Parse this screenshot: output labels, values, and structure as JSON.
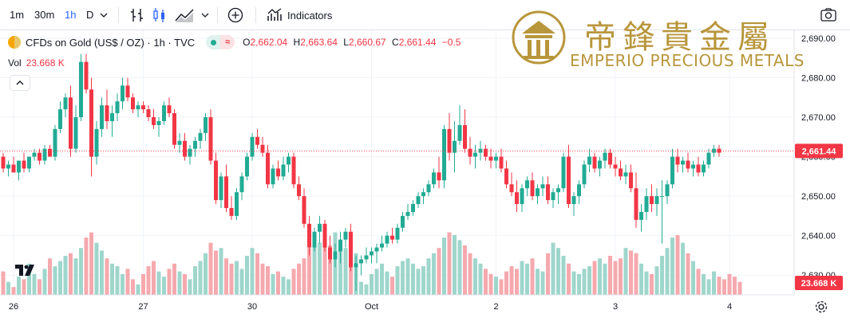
{
  "toolbar": {
    "intervals": [
      "1m",
      "30m",
      "1h",
      "D"
    ],
    "active_interval": "1h",
    "indicators_label": "Indicators"
  },
  "legend": {
    "symbol": "CFDs on Gold (US$ / OZ) · 1h · TVC",
    "o_label": "O",
    "o": "2,662.04",
    "h_label": "H",
    "h": "2,663.64",
    "l_label": "L",
    "l": "2,660.67",
    "c_label": "C",
    "c": "2,661.44",
    "change": "−0.5"
  },
  "volume_legend": {
    "label": "Vol",
    "value": "23.668 K"
  },
  "watermark": {
    "cn": "帝鋒貴金屬",
    "en": "EMPERIO PRECIOUS METALS"
  },
  "colors": {
    "up": "#22ab94",
    "down": "#f23645",
    "vol_up": "#9fd6cc",
    "vol_down": "#f5a9ae",
    "gold": "#b8963b"
  },
  "chart_data": {
    "type": "candlestick",
    "title": "CFDs on Gold (US$ / OZ)",
    "interval": "1h",
    "ylim": [
      2625,
      2692
    ],
    "yticks": [
      2630,
      2640,
      2650,
      2660,
      2670,
      2680,
      2690
    ],
    "ytick_labels": [
      "2,630.00",
      "2,640.00",
      "2,650.00",
      "2,660.00",
      "2,670.00",
      "2,680.00",
      "2,690.00"
    ],
    "last_price": 2661.44,
    "last_price_label": "2,661.44",
    "volume_last_label": "23.668 K",
    "xticks": [
      {
        "label": "26",
        "index": 2
      },
      {
        "label": "27",
        "index": 27
      },
      {
        "label": "30",
        "index": 48
      },
      {
        "label": "Oct",
        "index": 71
      },
      {
        "label": "2",
        "index": 95
      },
      {
        "label": "3",
        "index": 118
      },
      {
        "label": "4",
        "index": 140
      }
    ],
    "ohlc": [
      [
        2660,
        2661,
        2656,
        2657
      ],
      [
        2657,
        2659,
        2655,
        2658
      ],
      [
        2658,
        2660,
        2656,
        2656
      ],
      [
        2656,
        2659,
        2654,
        2659
      ],
      [
        2659,
        2661,
        2656,
        2657
      ],
      [
        2657,
        2660,
        2656,
        2660
      ],
      [
        2660,
        2662,
        2659,
        2661
      ],
      [
        2661,
        2662,
        2658,
        2659
      ],
      [
        2659,
        2663,
        2658,
        2662
      ],
      [
        2662,
        2663,
        2660,
        2660
      ],
      [
        2660,
        2668,
        2659,
        2667
      ],
      [
        2667,
        2674,
        2666,
        2672
      ],
      [
        2672,
        2676,
        2670,
        2675
      ],
      [
        2675,
        2678,
        2660,
        2662
      ],
      [
        2662,
        2673,
        2661,
        2670
      ],
      [
        2670,
        2686,
        2669,
        2684
      ],
      [
        2684,
        2686,
        2676,
        2677
      ],
      [
        2677,
        2680,
        2655,
        2660
      ],
      [
        2660,
        2669,
        2658,
        2667
      ],
      [
        2667,
        2675,
        2665,
        2673
      ],
      [
        2673,
        2677,
        2667,
        2669
      ],
      [
        2669,
        2673,
        2665,
        2671
      ],
      [
        2671,
        2676,
        2669,
        2674
      ],
      [
        2674,
        2680,
        2672,
        2678
      ],
      [
        2678,
        2680,
        2674,
        2675
      ],
      [
        2675,
        2676,
        2671,
        2672
      ],
      [
        2672,
        2674,
        2670,
        2673
      ],
      [
        2673,
        2674,
        2671,
        2672
      ],
      [
        2672,
        2673,
        2669,
        2670
      ],
      [
        2670,
        2672,
        2667,
        2668
      ],
      [
        2668,
        2670,
        2665,
        2669
      ],
      [
        2669,
        2674,
        2668,
        2673
      ],
      [
        2673,
        2675,
        2670,
        2671
      ],
      [
        2671,
        2672,
        2662,
        2663
      ],
      [
        2663,
        2666,
        2661,
        2664
      ],
      [
        2664,
        2666,
        2659,
        2660
      ],
      [
        2660,
        2663,
        2658,
        2662
      ],
      [
        2662,
        2665,
        2660,
        2664
      ],
      [
        2664,
        2667,
        2662,
        2666
      ],
      [
        2666,
        2671,
        2664,
        2670
      ],
      [
        2670,
        2672,
        2658,
        2659
      ],
      [
        2659,
        2661,
        2648,
        2649
      ],
      [
        2649,
        2656,
        2647,
        2655
      ],
      [
        2655,
        2658,
        2646,
        2647
      ],
      [
        2647,
        2650,
        2644,
        2645
      ],
      [
        2645,
        2652,
        2644,
        2651
      ],
      [
        2651,
        2656,
        2649,
        2655
      ],
      [
        2655,
        2661,
        2654,
        2660
      ],
      [
        2660,
        2666,
        2659,
        2665
      ],
      [
        2665,
        2667,
        2662,
        2663
      ],
      [
        2663,
        2665,
        2660,
        2661
      ],
      [
        2661,
        2663,
        2652,
        2653
      ],
      [
        2653,
        2658,
        2652,
        2657
      ],
      [
        2657,
        2659,
        2654,
        2655
      ],
      [
        2655,
        2660,
        2654,
        2658
      ],
      [
        2658,
        2661,
        2656,
        2660
      ],
      [
        2660,
        2661,
        2652,
        2653
      ],
      [
        2653,
        2655,
        2649,
        2650
      ],
      [
        2650,
        2652,
        2642,
        2643
      ],
      [
        2643,
        2645,
        2635,
        2637
      ],
      [
        2637,
        2642,
        2636,
        2641
      ],
      [
        2641,
        2645,
        2638,
        2643
      ],
      [
        2643,
        2644,
        2636,
        2637
      ],
      [
        2637,
        2640,
        2633,
        2634
      ],
      [
        2634,
        2638,
        2632,
        2636
      ],
      [
        2636,
        2641,
        2633,
        2639
      ],
      [
        2639,
        2642,
        2637,
        2641
      ],
      [
        2641,
        2643,
        2631,
        2632
      ],
      [
        2632,
        2635,
        2626,
        2633
      ],
      [
        2633,
        2635,
        2630,
        2634
      ],
      [
        2634,
        2637,
        2633,
        2635
      ],
      [
        2635,
        2637,
        2633,
        2636
      ],
      [
        2636,
        2638,
        2633,
        2637
      ],
      [
        2637,
        2640,
        2636,
        2638
      ],
      [
        2638,
        2641,
        2637,
        2640
      ],
      [
        2640,
        2642,
        2638,
        2639
      ],
      [
        2639,
        2643,
        2638,
        2642
      ],
      [
        2642,
        2646,
        2641,
        2645
      ],
      [
        2645,
        2648,
        2644,
        2646
      ],
      [
        2646,
        2649,
        2645,
        2648
      ],
      [
        2648,
        2651,
        2647,
        2650
      ],
      [
        2650,
        2652,
        2648,
        2651
      ],
      [
        2651,
        2654,
        2650,
        2653
      ],
      [
        2653,
        2657,
        2652,
        2656
      ],
      [
        2656,
        2660,
        2652,
        2654
      ],
      [
        2654,
        2668,
        2652,
        2667
      ],
      [
        2667,
        2671,
        2659,
        2661
      ],
      [
        2661,
        2669,
        2656,
        2664
      ],
      [
        2664,
        2673,
        2663,
        2668
      ],
      [
        2668,
        2672,
        2661,
        2662
      ],
      [
        2662,
        2665,
        2658,
        2660
      ],
      [
        2660,
        2663,
        2657,
        2661
      ],
      [
        2661,
        2664,
        2659,
        2662
      ],
      [
        2662,
        2663,
        2659,
        2660
      ],
      [
        2660,
        2662,
        2657,
        2659
      ],
      [
        2659,
        2661,
        2657,
        2660
      ],
      [
        2660,
        2662,
        2656,
        2657
      ],
      [
        2657,
        2659,
        2652,
        2653
      ],
      [
        2653,
        2656,
        2650,
        2651
      ],
      [
        2651,
        2654,
        2646,
        2648
      ],
      [
        2648,
        2653,
        2646,
        2652
      ],
      [
        2652,
        2655,
        2650,
        2654
      ],
      [
        2654,
        2656,
        2649,
        2650
      ],
      [
        2650,
        2653,
        2648,
        2652
      ],
      [
        2652,
        2655,
        2650,
        2653
      ],
      [
        2653,
        2655,
        2648,
        2649
      ],
      [
        2649,
        2652,
        2647,
        2651
      ],
      [
        2651,
        2653,
        2648,
        2652
      ],
      [
        2652,
        2661,
        2651,
        2660
      ],
      [
        2660,
        2663,
        2647,
        2648
      ],
      [
        2648,
        2651,
        2645,
        2650
      ],
      [
        2650,
        2654,
        2648,
        2653
      ],
      [
        2653,
        2659,
        2652,
        2658
      ],
      [
        2658,
        2662,
        2656,
        2660
      ],
      [
        2660,
        2661,
        2656,
        2657
      ],
      [
        2657,
        2660,
        2655,
        2659
      ],
      [
        2659,
        2662,
        2657,
        2661
      ],
      [
        2661,
        2662,
        2657,
        2658
      ],
      [
        2658,
        2660,
        2655,
        2657
      ],
      [
        2657,
        2659,
        2654,
        2655
      ],
      [
        2655,
        2658,
        2653,
        2656
      ],
      [
        2656,
        2658,
        2651,
        2652
      ],
      [
        2652,
        2656,
        2642,
        2644
      ],
      [
        2644,
        2648,
        2641,
        2646
      ],
      [
        2646,
        2652,
        2644,
        2650
      ],
      [
        2650,
        2653,
        2646,
        2648
      ],
      [
        2648,
        2652,
        2645,
        2650
      ],
      [
        2650,
        2654,
        2638,
        2650
      ],
      [
        2650,
        2654,
        2648,
        2653
      ],
      [
        2653,
        2662,
        2652,
        2660
      ],
      [
        2660,
        2662,
        2656,
        2658
      ],
      [
        2658,
        2660,
        2656,
        2659
      ],
      [
        2659,
        2661,
        2656,
        2657
      ],
      [
        2657,
        2659,
        2655,
        2658
      ],
      [
        2658,
        2660,
        2655,
        2656
      ],
      [
        2656,
        2659,
        2655,
        2658
      ],
      [
        2658,
        2662,
        2657,
        2661
      ],
      [
        2661,
        2663,
        2660,
        2662
      ],
      [
        2662,
        2663,
        2660,
        2661
      ]
    ],
    "volume": [
      9,
      5,
      3,
      7,
      6,
      12,
      8,
      6,
      10,
      14,
      11,
      13,
      15,
      16,
      14,
      18,
      22,
      24,
      20,
      17,
      14,
      12,
      11,
      8,
      10,
      6,
      4,
      8,
      11,
      13,
      9,
      7,
      10,
      12,
      9,
      8,
      6,
      11,
      13,
      16,
      20,
      17,
      18,
      14,
      12,
      13,
      10,
      15,
      18,
      16,
      12,
      11,
      8,
      9,
      7,
      6,
      10,
      12,
      14,
      18,
      22,
      20,
      26,
      19,
      24,
      21,
      18,
      23,
      16,
      5,
      4,
      8,
      10,
      12,
      9,
      7,
      11,
      13,
      14,
      12,
      10,
      11,
      14,
      16,
      18,
      22,
      24,
      23,
      21,
      19,
      16,
      14,
      12,
      10,
      8,
      7,
      6,
      9,
      11,
      10,
      13,
      12,
      14,
      10,
      9,
      16,
      20,
      18,
      15,
      12,
      9,
      8,
      10,
      11,
      13,
      14,
      12,
      15,
      13,
      14,
      18,
      17,
      16,
      12,
      9,
      8,
      11,
      15,
      18,
      22,
      23,
      20,
      16,
      13,
      10,
      8,
      6,
      9,
      7,
      6,
      8,
      7,
      5
    ]
  }
}
